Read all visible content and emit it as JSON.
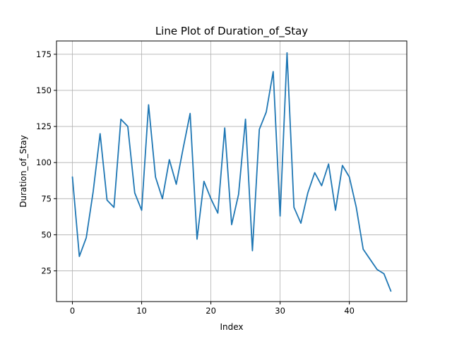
{
  "chart_data": {
    "type": "line",
    "title": "Line Plot of Duration_of_Stay",
    "xlabel": "Index",
    "ylabel": "Duration_of_Stay",
    "xlim": [
      -2.3,
      48.3
    ],
    "ylim": [
      3.75,
      184.2
    ],
    "xticks": [
      0,
      10,
      20,
      30,
      40
    ],
    "yticks": [
      25,
      50,
      75,
      100,
      125,
      150,
      175
    ],
    "grid": true,
    "series": [
      {
        "color": "#1f77b4",
        "x": [
          0,
          1,
          2,
          3,
          4,
          5,
          6,
          7,
          8,
          9,
          10,
          11,
          12,
          13,
          14,
          15,
          16,
          17,
          18,
          19,
          20,
          21,
          22,
          23,
          24,
          25,
          26,
          27,
          28,
          29,
          30,
          31,
          32,
          33,
          34,
          35,
          36,
          37,
          38,
          39,
          40,
          41,
          42,
          43,
          44,
          45,
          46
        ],
        "values": [
          90,
          35,
          48,
          80,
          120,
          74,
          69,
          130,
          125,
          79,
          67,
          140,
          90,
          75,
          102,
          85,
          110,
          134,
          47,
          87,
          75,
          65,
          124,
          57,
          78,
          130,
          39,
          123,
          135,
          163,
          63,
          176,
          69,
          58,
          79,
          93,
          84,
          99,
          67,
          98,
          90,
          69,
          40,
          33,
          26,
          23,
          11
        ]
      }
    ]
  }
}
